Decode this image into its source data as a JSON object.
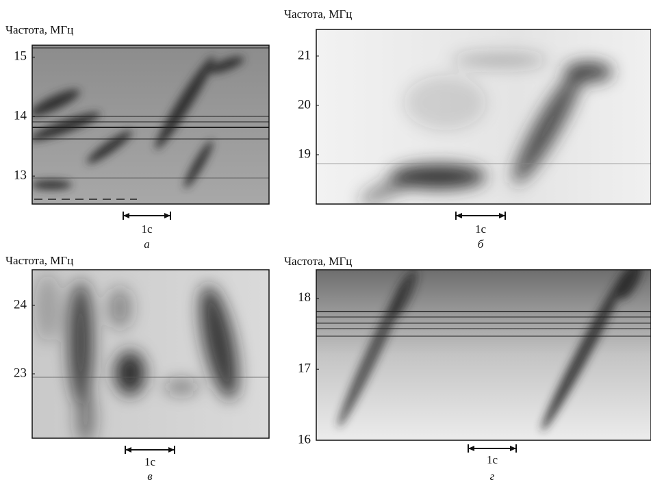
{
  "chart_data": [
    {
      "type": "spectrogram",
      "y_label": "Частота, МГц",
      "ylim": [
        12.53,
        15.2
      ],
      "yticks": [
        13,
        14,
        15
      ],
      "scale_label": "1с",
      "caption": "а"
    },
    {
      "type": "spectrogram",
      "y_label": "Частота, МГц",
      "ylim": [
        18.0,
        21.54
      ],
      "yticks": [
        19,
        20,
        21
      ],
      "scale_label": "1с",
      "caption": "б"
    },
    {
      "type": "spectrogram",
      "y_label": "Частота, МГц",
      "ylim": [
        22.06,
        24.52
      ],
      "yticks": [
        23,
        24
      ],
      "scale_label": "1с",
      "caption": "в"
    },
    {
      "type": "spectrogram",
      "y_label": "Частота, МГц",
      "ylim": [
        16.0,
        18.4
      ],
      "yticks": [
        16,
        17,
        18
      ],
      "scale_label": "1с",
      "caption": "г"
    }
  ]
}
